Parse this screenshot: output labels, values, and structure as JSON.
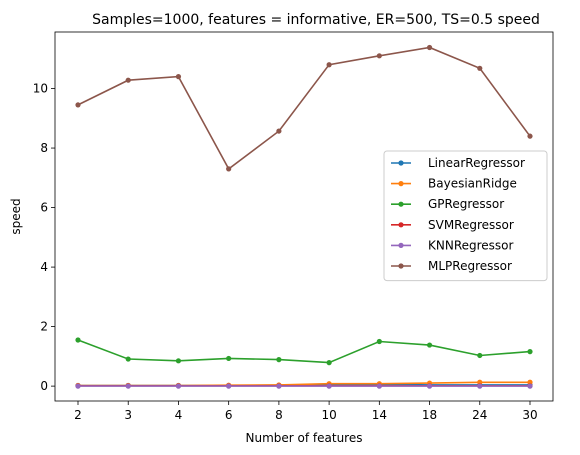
{
  "chart_data": {
    "type": "line",
    "title": "Samples=1000, features = informative, ER=500, TS=0.5 speed",
    "xlabel": "Number of features",
    "ylabel": "speed",
    "categories": [
      "2",
      "3",
      "4",
      "6",
      "8",
      "10",
      "14",
      "18",
      "24",
      "30"
    ],
    "ylim": [
      -0.5,
      11.9
    ],
    "yticks": [
      0,
      2,
      4,
      6,
      8,
      10
    ],
    "grid": false,
    "legend_position": "center-right",
    "marker": "circle",
    "series": [
      {
        "name": "LinearRegressor",
        "color": "#1f77b4",
        "values": [
          0.02,
          0.02,
          0.02,
          0.02,
          0.03,
          0.05,
          0.06,
          0.04,
          0.04,
          0.04
        ]
      },
      {
        "name": "BayesianRidge",
        "color": "#ff7f0e",
        "values": [
          0.02,
          0.02,
          0.02,
          0.03,
          0.04,
          0.08,
          0.08,
          0.1,
          0.13,
          0.13
        ]
      },
      {
        "name": "GPRegressor",
        "color": "#2ca02c",
        "values": [
          1.55,
          0.91,
          0.85,
          0.93,
          0.89,
          0.79,
          1.5,
          1.38,
          1.03,
          1.16
        ]
      },
      {
        "name": "SVMRegressor",
        "color": "#d62728",
        "values": [
          0.01,
          0.01,
          0.01,
          0.01,
          0.01,
          0.01,
          0.01,
          0.01,
          0.01,
          0.01
        ]
      },
      {
        "name": "KNNRegressor",
        "color": "#9467bd",
        "values": [
          0.0,
          0.0,
          0.0,
          0.0,
          0.0,
          0.0,
          0.0,
          0.0,
          0.0,
          0.0
        ]
      },
      {
        "name": "MLPRegressor",
        "color": "#8c564b",
        "values": [
          9.45,
          10.28,
          10.4,
          7.3,
          8.57,
          10.8,
          11.1,
          11.38,
          10.68,
          8.4
        ]
      }
    ]
  }
}
